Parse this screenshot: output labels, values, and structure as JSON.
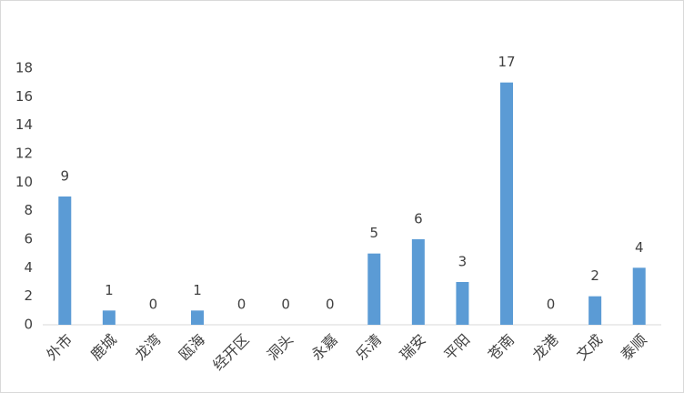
{
  "chart_data": {
    "type": "bar",
    "categories": [
      "外市",
      "鹿城",
      "龙湾",
      "瓯海",
      "经开区",
      "洞头",
      "永嘉",
      "乐清",
      "瑞安",
      "平阳",
      "苍南",
      "龙港",
      "文成",
      "泰顺"
    ],
    "values": [
      9,
      1,
      0,
      1,
      0,
      0,
      0,
      5,
      6,
      3,
      17,
      0,
      2,
      4
    ],
    "color": "#5b9bd5",
    "ylim": [
      0,
      18
    ],
    "yticks": [
      0,
      2,
      4,
      6,
      8,
      10,
      12,
      14,
      16,
      18
    ],
    "grid": false
  }
}
